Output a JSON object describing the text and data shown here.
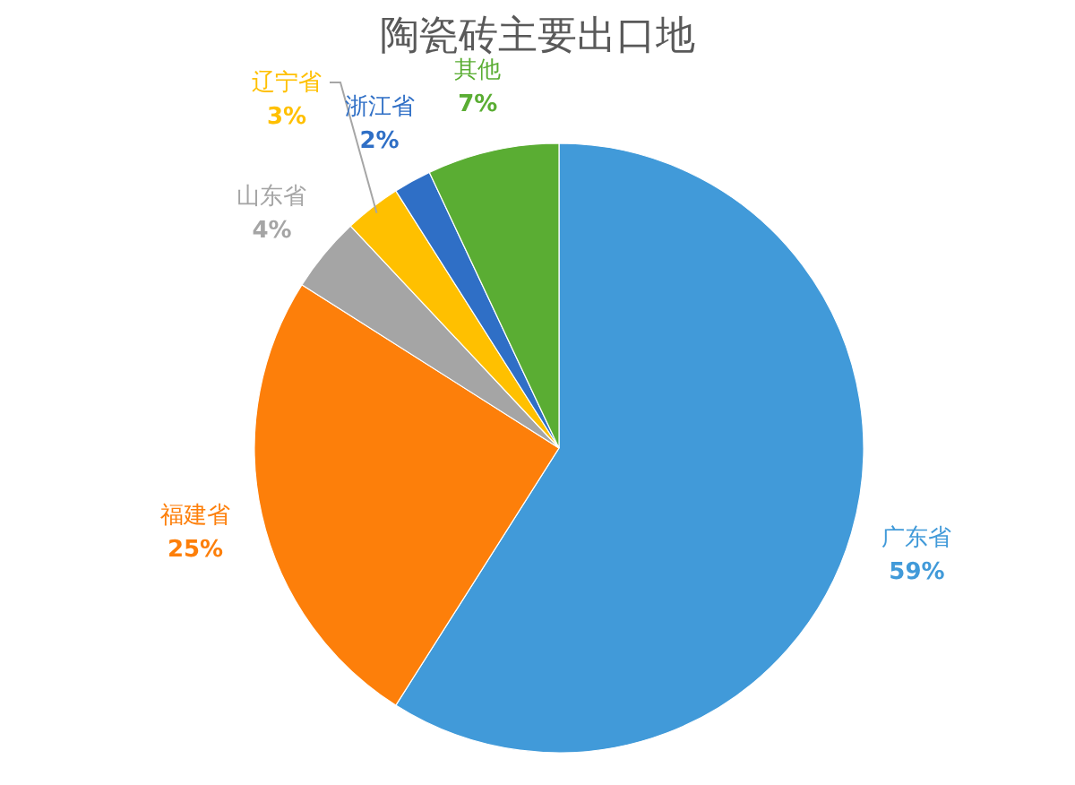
{
  "chart_data": {
    "type": "pie",
    "title": "陶瓷砖主要出口地",
    "categories": [
      "广东省",
      "福建省",
      "山东省",
      "辽宁省",
      "浙江省",
      "其他"
    ],
    "values": [
      59,
      25,
      4,
      3,
      2,
      7
    ],
    "value_labels": [
      "59%",
      "25%",
      "4%",
      "3%",
      "2%",
      "7%"
    ],
    "colors": [
      "#419ad9",
      "#fd7f0a",
      "#a5a5a5",
      "#ffc000",
      "#2f6fc6",
      "#5aad33"
    ]
  }
}
